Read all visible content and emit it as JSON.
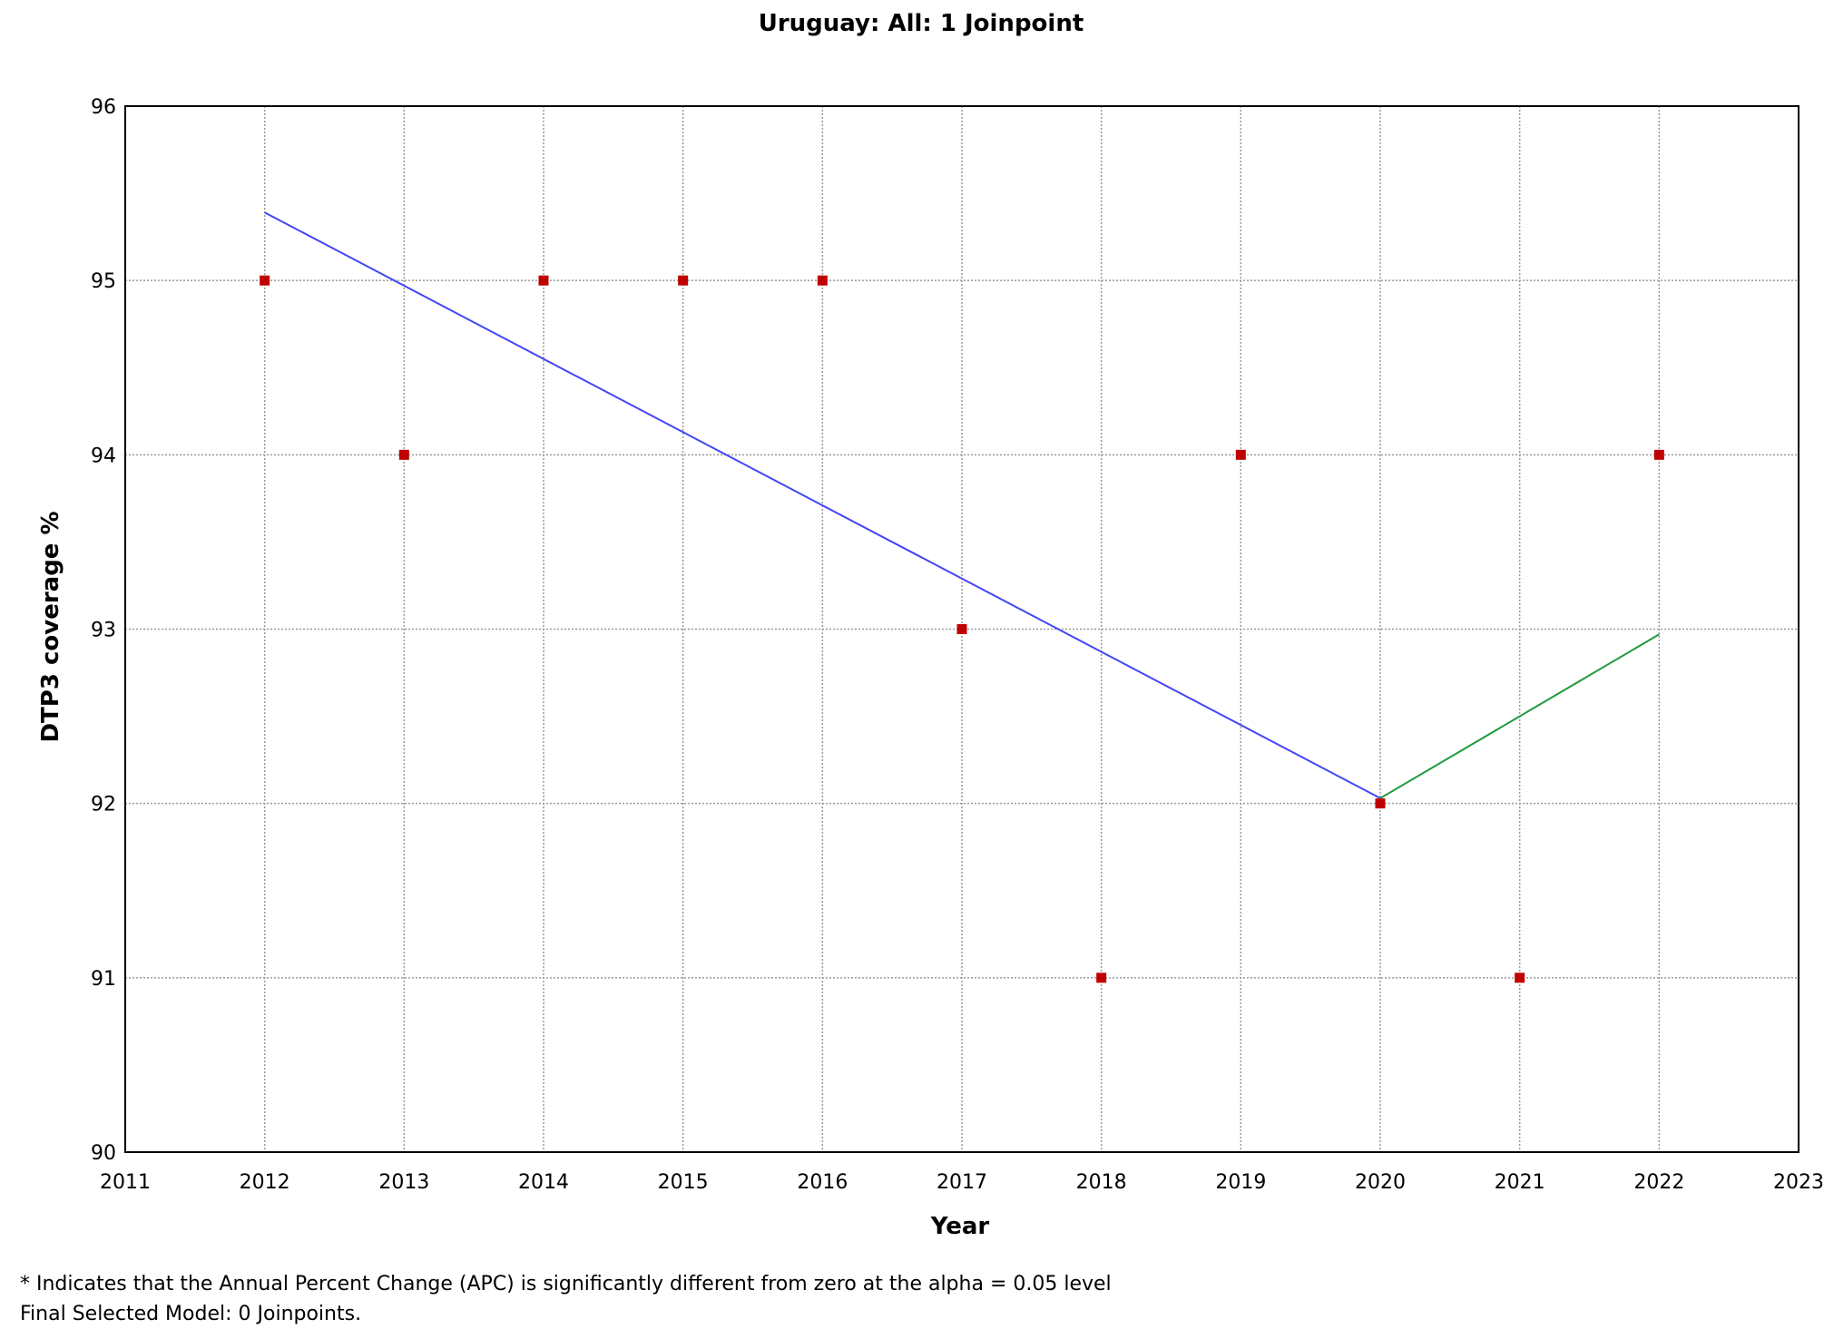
{
  "colors": {
    "background": "#ffffff",
    "frame": "#000000",
    "grid": "#9a9a9a",
    "text": "#000000",
    "points": "#c00000",
    "segment_1": "#4545f5",
    "segment_2": "#1e9a3a"
  },
  "chart_data": {
    "type": "scatter",
    "title": "Uruguay: All: 1 Joinpoint",
    "xlabel": "Year",
    "ylabel": "DTP3 coverage %",
    "xlim": [
      2011,
      2023
    ],
    "ylim": [
      90,
      96
    ],
    "x_ticks": [
      2011,
      2012,
      2013,
      2014,
      2015,
      2016,
      2017,
      2018,
      2019,
      2020,
      2021,
      2022,
      2023
    ],
    "y_ticks": [
      90,
      91,
      92,
      93,
      94,
      95,
      96
    ],
    "grid": true,
    "legend": "none",
    "observed": {
      "marker": "square",
      "x": [
        2012,
        2013,
        2014,
        2015,
        2016,
        2017,
        2018,
        2019,
        2020,
        2021,
        2022
      ],
      "y": [
        95,
        94,
        95,
        95,
        95,
        93,
        91,
        94,
        92,
        91,
        94
      ]
    },
    "segments": [
      {
        "x": [
          2012,
          2020
        ],
        "y": [
          95.39,
          92.03
        ]
      },
      {
        "x": [
          2020,
          2022
        ],
        "y": [
          92.03,
          92.97
        ]
      }
    ]
  },
  "footnotes": [
    "* Indicates that the Annual Percent Change (APC) is significantly different from zero at the alpha = 0.05 level",
    "Final Selected Model: 0 Joinpoints."
  ]
}
